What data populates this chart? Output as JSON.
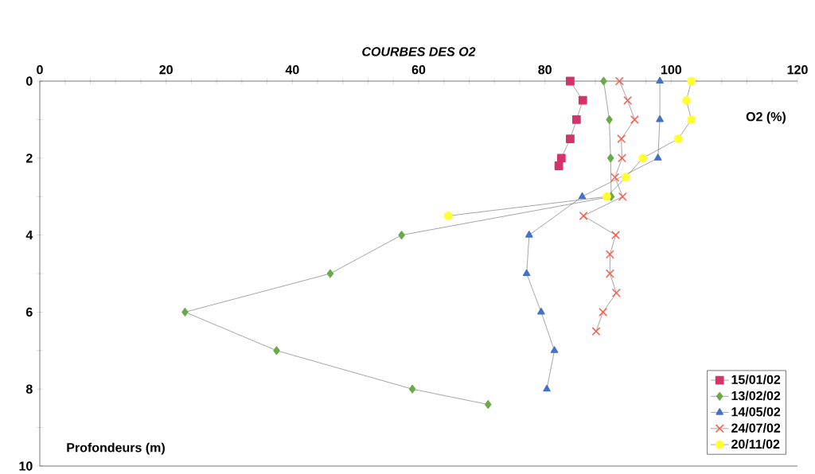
{
  "chart_data": {
    "type": "line",
    "title": "COURBES DES O2",
    "xlabel": "O2 (%)",
    "ylabel": "Profondeurs (m)",
    "xlim": [
      0,
      120
    ],
    "ylim": [
      10,
      0
    ],
    "xticks": [
      0,
      {
        "value": 4,
        "label": null
      },
      {
        "value": 8,
        "label": null
      },
      {
        "value": 12,
        "label": null
      },
      {
        "value": 16,
        "label": null
      },
      20,
      {
        "value": 24,
        "label": null
      },
      {
        "value": 28,
        "label": null
      },
      {
        "value": 32,
        "label": null
      },
      {
        "value": 36,
        "label": null
      },
      40,
      {
        "value": 44,
        "label": null
      },
      {
        "value": 48,
        "label": null
      },
      {
        "value": 52,
        "label": null
      },
      {
        "value": 56,
        "label": null
      },
      60,
      {
        "value": 64,
        "label": null
      },
      {
        "value": 68,
        "label": null
      },
      {
        "value": 72,
        "label": null
      },
      {
        "value": 76,
        "label": null
      },
      80,
      {
        "value": 84,
        "label": null
      },
      {
        "value": 88,
        "label": null
      },
      {
        "value": 92,
        "label": null
      },
      {
        "value": 96,
        "label": null
      },
      100,
      {
        "value": 104,
        "label": null
      },
      {
        "value": 108,
        "label": null
      },
      {
        "value": 112,
        "label": null
      },
      {
        "value": 116,
        "label": null
      },
      120
    ],
    "yticks": [
      0,
      {
        "value": 1,
        "label": null
      },
      2,
      {
        "value": 3,
        "label": null
      },
      4,
      {
        "value": 5,
        "label": null
      },
      6,
      {
        "value": 7,
        "label": null
      },
      8,
      {
        "value": 9,
        "label": null
      },
      10
    ],
    "legend": "bottom right",
    "grid": false,
    "series": [
      {
        "name": "15/01/02",
        "color": "#d6336c",
        "marker": "square",
        "x": [
          84,
          86,
          85,
          84,
          82.6,
          82.2
        ],
        "values": [
          0,
          0.5,
          1,
          1.5,
          2,
          2.2
        ]
      },
      {
        "name": "13/02/02",
        "color": "#6aaa4a",
        "marker": "diamond",
        "x": [
          89.3,
          90.2,
          90.4,
          90.5,
          57.3,
          46,
          23,
          37.5,
          59,
          71
        ],
        "values": [
          0,
          1,
          2,
          3,
          4,
          5,
          6,
          7,
          8,
          8.4
        ]
      },
      {
        "name": "14/05/02",
        "color": "#4472c4",
        "marker": "triangle",
        "x": [
          98.2,
          98.2,
          97.9,
          85.9,
          77.5,
          77.1,
          79.4,
          81.5,
          80.3
        ],
        "values": [
          0,
          1,
          2,
          3,
          4,
          5,
          6,
          7,
          8
        ]
      },
      {
        "name": "24/07/02",
        "color": "#ff5a4a",
        "marker": "cross",
        "x": [
          91.8,
          93.1,
          94.2,
          92.1,
          92.2,
          91.1,
          92.3,
          86.1,
          91.2,
          90.3,
          90.3,
          91.3,
          89.2,
          88.1
        ],
        "values": [
          0,
          0.5,
          1,
          1.5,
          2,
          2.5,
          3,
          3.5,
          4,
          4.5,
          5,
          5.5,
          6,
          6.5
        ]
      },
      {
        "name": "20/11/02",
        "color": "#ffff33",
        "marker": "circle",
        "x": [
          103.2,
          102.4,
          103.2,
          101.1,
          95.5,
          92.8,
          89.8,
          64.7
        ],
        "values": [
          0,
          0.5,
          1,
          1.5,
          2,
          2.5,
          3,
          3.5
        ]
      }
    ]
  }
}
